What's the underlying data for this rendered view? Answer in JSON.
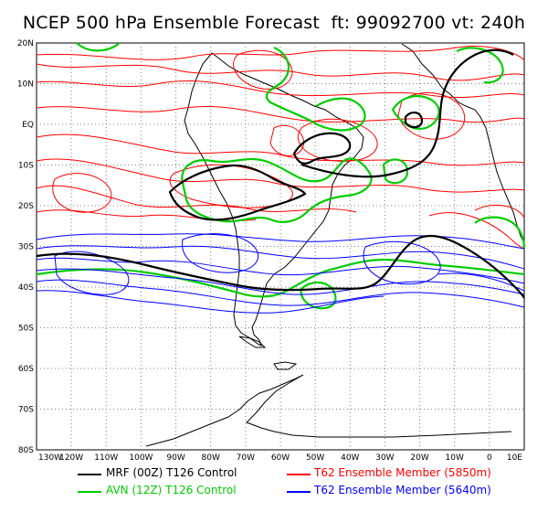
{
  "title": "NCEP 500 hPa Ensemble Forecast  ft: 99092700 vt: 240h",
  "lat_labels": [
    "20N",
    "10N",
    "EQ",
    "10S",
    "20S",
    "30S",
    "40S",
    "50S",
    "60S",
    "70S",
    "80S"
  ],
  "lon_labels": [
    "130W",
    "120W",
    "110W",
    "100W",
    "90W",
    "80W",
    "70W",
    "60W",
    "50W",
    "40W",
    "30W",
    "20W",
    "10W",
    "0",
    "10E"
  ],
  "legend": [
    {
      "text": "MRF (00Z) T126 Control",
      "color": "#000000"
    },
    {
      "text": "AVN (12Z) T126 Control",
      "color": "#00cc00"
    },
    {
      "text": "T62 Ensemble Member (5850m)",
      "color": "#ff0000"
    },
    {
      "text": "T62 Ensemble Member (5640m)",
      "color": "#0000ff"
    }
  ],
  "colors": {
    "mrf": "#000000",
    "avn": "#00cc00",
    "red_member": "#ff0000",
    "blue_member": "#0000ff",
    "coast": "#000000",
    "grid": "#808080"
  },
  "map_extent": {
    "lon_min": -130,
    "lon_max": 10,
    "lat_min": -80,
    "lat_max": 20
  }
}
